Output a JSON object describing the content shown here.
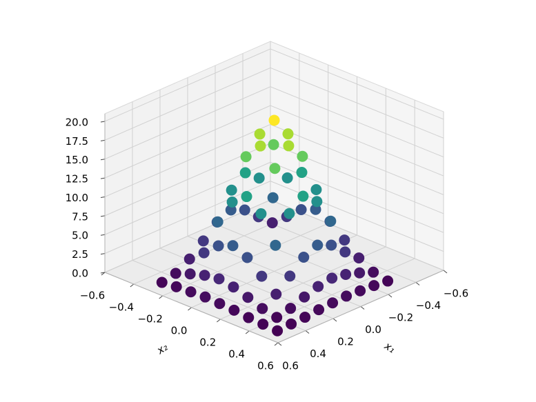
{
  "chart_data": {
    "type": "scatter3d",
    "x_label": "x₁",
    "y_label": "x₂",
    "xlim": [
      -0.6,
      0.6
    ],
    "ylim": [
      -0.6,
      0.6
    ],
    "zlim": [
      0,
      21
    ],
    "xticks": [
      {
        "value": -0.6,
        "label": "−0.6"
      },
      {
        "value": -0.4,
        "label": "−0.4"
      },
      {
        "value": -0.2,
        "label": "−0.2"
      },
      {
        "value": 0,
        "label": "0.0"
      },
      0.2,
      0.4,
      0.6
    ],
    "yticks": [
      {
        "value": -0.6,
        "label": "−0.6"
      },
      {
        "value": -0.4,
        "label": "−0.4"
      },
      {
        "value": -0.2,
        "label": "−0.2"
      },
      {
        "value": 0,
        "label": "0.0"
      },
      0.2,
      0.4,
      0.6
    ],
    "zticks": [
      {
        "value": 0,
        "label": "0.0"
      },
      2.5,
      {
        "value": 5,
        "label": "5.0"
      },
      7.5,
      {
        "value": 10,
        "label": "10.0"
      },
      12.5,
      {
        "value": 15,
        "label": "15.0"
      },
      17.5,
      {
        "value": 20,
        "label": "20.0"
      }
    ],
    "grid": true,
    "colormap": "viridis",
    "x": [
      -0.3,
      -0.3,
      -0.3,
      -0.3,
      -0.3,
      -0.3,
      -0.3,
      -0.3,
      -0.3,
      -0.2,
      -0.2,
      -0.2,
      -0.2,
      -0.2,
      -0.2,
      -0.2,
      -0.2,
      -0.2,
      -0.1,
      -0.1,
      -0.1,
      -0.1,
      -0.1,
      -0.1,
      -0.1,
      -0.1,
      -0.1,
      0,
      0,
      0,
      0,
      0,
      0,
      0,
      0,
      0,
      0.1,
      0.1,
      0.1,
      0.1,
      0.1,
      0.1,
      0.1,
      0.1,
      0.1,
      0.2,
      0.2,
      0.2,
      0.2,
      0.2,
      0.2,
      0.2,
      0.2,
      0.2,
      0.3,
      0.3,
      0.3,
      0.3,
      0.3,
      0.3,
      0.3,
      0.3,
      0.3,
      0.4,
      0.4,
      0.4,
      0.4,
      0.4,
      0.4,
      0.4,
      0.4,
      0.4,
      0.5,
      0.5,
      0.5,
      0.5,
      0.5,
      0.5,
      0.5,
      0.5,
      0.5
    ],
    "y": [
      -0.3,
      -0.2,
      -0.1,
      0,
      0.1,
      0.2,
      0.3,
      0.4,
      0.5,
      -0.3,
      -0.2,
      -0.1,
      0,
      0.1,
      0.2,
      0.3,
      0.4,
      0.5,
      -0.3,
      -0.2,
      -0.1,
      0,
      0.1,
      0.2,
      0.3,
      0.4,
      0.5,
      -0.3,
      -0.2,
      -0.1,
      0,
      0.1,
      0.2,
      0.3,
      0.4,
      0.5,
      -0.3,
      -0.2,
      -0.1,
      0,
      0.1,
      0.2,
      0.3,
      0.4,
      0.5,
      -0.3,
      -0.2,
      -0.1,
      0,
      0.1,
      0.2,
      0.3,
      0.4,
      0.5,
      -0.3,
      -0.2,
      -0.1,
      0,
      0.1,
      0.2,
      0.3,
      0.4,
      0.5,
      -0.3,
      -0.2,
      -0.1,
      0,
      0.1,
      0.2,
      0.3,
      0.4,
      0.5,
      -0.3,
      -0.2,
      -0.1,
      0,
      0.1,
      0.2,
      0.3,
      0.4,
      0.5
    ],
    "z": [
      1.7,
      3.3,
      5.0,
      5.8,
      5.0,
      3.3,
      1.7,
      0.6,
      0.2,
      3.3,
      6.6,
      10.0,
      11.5,
      10.0,
      6.6,
      3.3,
      1.3,
      0.4,
      5.0,
      10.0,
      15.2,
      17.4,
      15.2,
      10.0,
      5.0,
      1.9,
      0.5,
      5.8,
      11.5,
      17.4,
      20.0,
      17.4,
      11.5,
      5.8,
      2.2,
      0.6,
      5.0,
      10.0,
      15.2,
      17.4,
      15.2,
      10.0,
      5.0,
      1.9,
      0.5,
      3.3,
      6.6,
      10.0,
      11.5,
      10.0,
      6.6,
      3.3,
      1.3,
      0.4,
      1.7,
      3.3,
      5.0,
      5.8,
      5.0,
      3.3,
      1.7,
      0.6,
      0.2,
      0.6,
      1.3,
      1.9,
      2.2,
      1.9,
      1.3,
      0.6,
      0.2,
      0.1,
      0.2,
      0.4,
      0.5,
      0.6,
      0.5,
      0.4,
      0.2,
      0.1,
      0.0
    ]
  }
}
